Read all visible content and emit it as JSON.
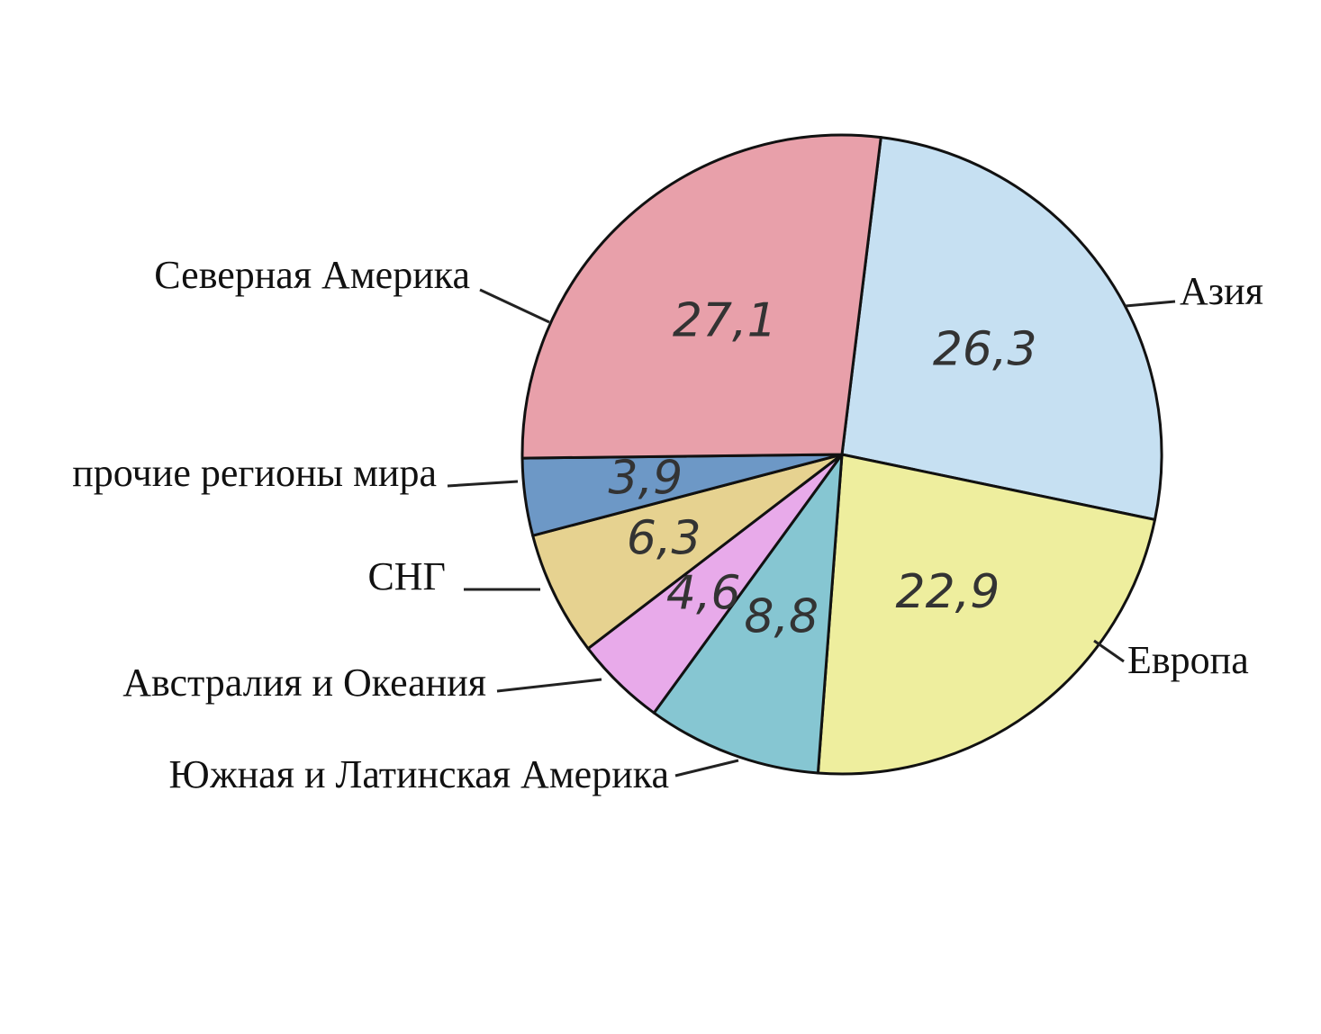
{
  "chart_data": {
    "type": "pie",
    "categories": [
      "Азия",
      "Европа",
      "Южная и Латинская Америка",
      "Австралия и Океания",
      "СНГ",
      "прочие регионы мира",
      "Северная Америка"
    ],
    "values": [
      26.3,
      22.9,
      8.8,
      4.6,
      6.3,
      3.9,
      27.1
    ],
    "value_labels": [
      "26,3",
      "22,9",
      "8,8",
      "4,6",
      "6,3",
      "3,9",
      "27,1"
    ],
    "colors": [
      "#c6e0f2",
      "#eeee9e",
      "#86c6d2",
      "#e8aaea",
      "#e6d290",
      "#6d98c6",
      "#e8a0aa"
    ]
  }
}
